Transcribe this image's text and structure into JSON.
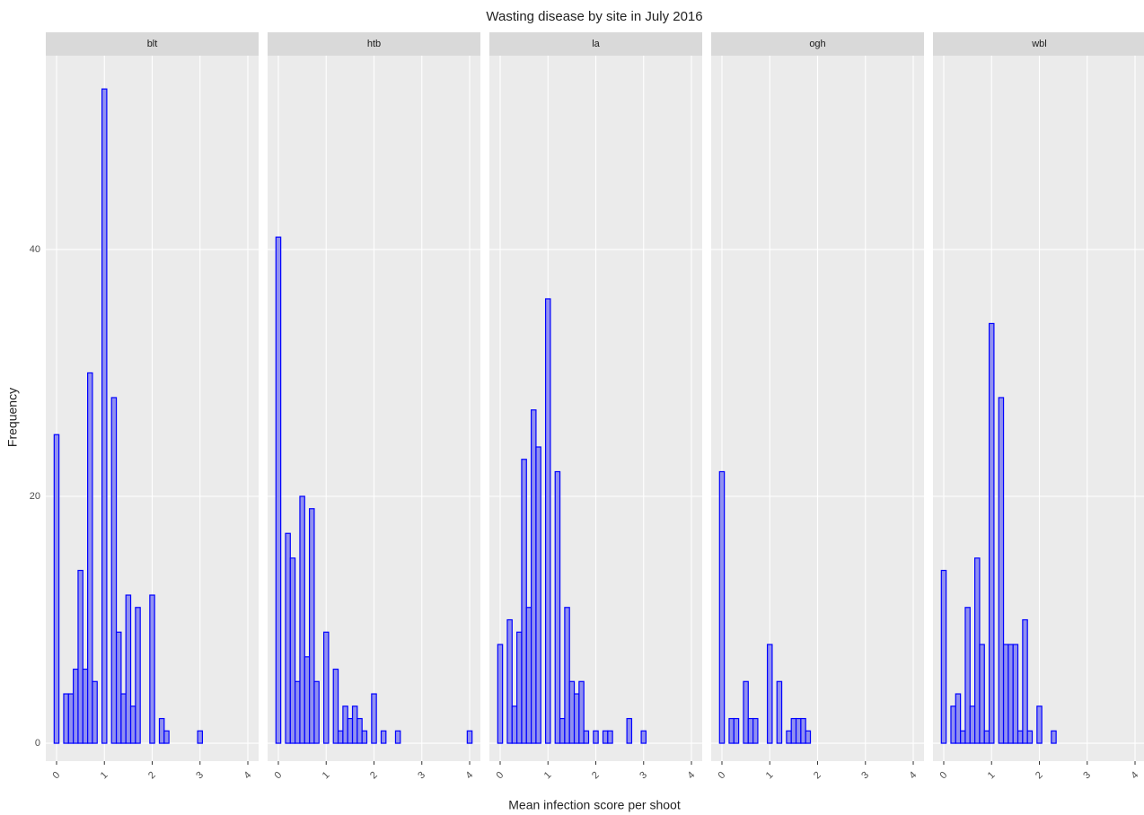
{
  "title": "Wasting disease by site in July 2016",
  "x_label": "Mean infection score per shoot",
  "y_label": "Frequency",
  "chart_data": [
    {
      "type": "histogram",
      "title": "blt",
      "color": "#0000ff",
      "fill": "#8080f0",
      "bins": [
        -0.05,
        0.05,
        0.15,
        0.25,
        0.35,
        0.45,
        0.55,
        0.65,
        0.75,
        0.85,
        0.95,
        1.05,
        1.15,
        1.25,
        1.35,
        1.45,
        1.55,
        1.65,
        1.75,
        1.85,
        1.95,
        2.05,
        2.15,
        2.25,
        2.35,
        2.45,
        2.55,
        2.65,
        2.75,
        2.85,
        2.95,
        3.05,
        3.15,
        3.25,
        3.35,
        3.45,
        3.55,
        3.65,
        3.75,
        3.85,
        3.95,
        4.05
      ],
      "values": [
        25,
        0,
        4,
        4,
        6,
        14,
        6,
        30,
        5,
        0,
        53,
        0,
        28,
        9,
        4,
        12,
        3,
        11,
        0,
        0,
        12,
        0,
        2,
        1,
        0,
        0,
        0,
        0,
        0,
        0,
        1,
        0,
        0,
        0,
        0,
        0,
        0,
        0,
        0,
        0,
        0
      ],
      "xlim": [
        -0.225,
        4.225
      ],
      "ylim": [
        -1.45,
        55.7
      ],
      "xticks": [
        0,
        1,
        2,
        3,
        4
      ],
      "yticks": [
        0,
        20,
        40
      ],
      "grid": true
    },
    {
      "type": "histogram",
      "title": "htb",
      "color": "#0000ff",
      "fill": "#8080f0",
      "bins": [
        -0.05,
        0.05,
        0.15,
        0.25,
        0.35,
        0.45,
        0.55,
        0.65,
        0.75,
        0.85,
        0.95,
        1.05,
        1.15,
        1.25,
        1.35,
        1.45,
        1.55,
        1.65,
        1.75,
        1.85,
        1.95,
        2.05,
        2.15,
        2.25,
        2.35,
        2.45,
        2.55,
        2.65,
        2.75,
        2.85,
        2.95,
        3.05,
        3.15,
        3.25,
        3.35,
        3.45,
        3.55,
        3.65,
        3.75,
        3.85,
        3.95,
        4.05
      ],
      "values": [
        41,
        0,
        17,
        15,
        5,
        20,
        7,
        19,
        5,
        0,
        9,
        0,
        6,
        1,
        3,
        2,
        3,
        2,
        1,
        0,
        4,
        0,
        1,
        0,
        0,
        1,
        0,
        0,
        0,
        0,
        0,
        0,
        0,
        0,
        0,
        0,
        0,
        0,
        0,
        0,
        1
      ],
      "xlim": [
        -0.225,
        4.225
      ],
      "ylim": [
        -1.45,
        55.7
      ],
      "xticks": [
        0,
        1,
        2,
        3,
        4
      ],
      "yticks": [
        0,
        20,
        40
      ],
      "grid": true
    },
    {
      "type": "histogram",
      "title": "la",
      "color": "#0000ff",
      "fill": "#8080f0",
      "bins": [
        -0.05,
        0.05,
        0.15,
        0.25,
        0.35,
        0.45,
        0.55,
        0.65,
        0.75,
        0.85,
        0.95,
        1.05,
        1.15,
        1.25,
        1.35,
        1.45,
        1.55,
        1.65,
        1.75,
        1.85,
        1.95,
        2.05,
        2.15,
        2.25,
        2.35,
        2.45,
        2.55,
        2.65,
        2.75,
        2.85,
        2.95,
        3.05,
        3.15,
        3.25,
        3.35,
        3.45,
        3.55,
        3.65,
        3.75,
        3.85,
        3.95,
        4.05
      ],
      "values": [
        8,
        0,
        10,
        3,
        9,
        23,
        11,
        27,
        24,
        0,
        36,
        0,
        22,
        2,
        11,
        5,
        4,
        5,
        1,
        0,
        1,
        0,
        1,
        1,
        0,
        0,
        0,
        2,
        0,
        0,
        1,
        0,
        0,
        0,
        0,
        0,
        0,
        0,
        0,
        0,
        0
      ],
      "xlim": [
        -0.225,
        4.225
      ],
      "ylim": [
        -1.45,
        55.7
      ],
      "xticks": [
        0,
        1,
        2,
        3,
        4
      ],
      "yticks": [
        0,
        20,
        40
      ],
      "grid": true
    },
    {
      "type": "histogram",
      "title": "ogh",
      "color": "#0000ff",
      "fill": "#8080f0",
      "bins": [
        -0.05,
        0.05,
        0.15,
        0.25,
        0.35,
        0.45,
        0.55,
        0.65,
        0.75,
        0.85,
        0.95,
        1.05,
        1.15,
        1.25,
        1.35,
        1.45,
        1.55,
        1.65,
        1.75,
        1.85,
        1.95,
        2.05,
        2.15,
        2.25,
        2.35,
        2.45,
        2.55,
        2.65,
        2.75,
        2.85,
        2.95,
        3.05,
        3.15,
        3.25,
        3.35,
        3.45,
        3.55,
        3.65,
        3.75,
        3.85,
        3.95,
        4.05
      ],
      "values": [
        22,
        0,
        2,
        2,
        0,
        5,
        2,
        2,
        0,
        0,
        8,
        0,
        5,
        0,
        1,
        2,
        2,
        2,
        1,
        0,
        0,
        0,
        0,
        0,
        0,
        0,
        0,
        0,
        0,
        0,
        0,
        0,
        0,
        0,
        0,
        0,
        0,
        0,
        0,
        0,
        0
      ],
      "xlim": [
        -0.225,
        4.225
      ],
      "ylim": [
        -1.45,
        55.7
      ],
      "xticks": [
        0,
        1,
        2,
        3,
        4
      ],
      "yticks": [
        0,
        20,
        40
      ],
      "grid": true
    },
    {
      "type": "histogram",
      "title": "wbl",
      "color": "#0000ff",
      "fill": "#8080f0",
      "bins": [
        -0.05,
        0.05,
        0.15,
        0.25,
        0.35,
        0.45,
        0.55,
        0.65,
        0.75,
        0.85,
        0.95,
        1.05,
        1.15,
        1.25,
        1.35,
        1.45,
        1.55,
        1.65,
        1.75,
        1.85,
        1.95,
        2.05,
        2.15,
        2.25,
        2.35,
        2.45,
        2.55,
        2.65,
        2.75,
        2.85,
        2.95,
        3.05,
        3.15,
        3.25,
        3.35,
        3.45,
        3.55,
        3.65,
        3.75,
        3.85,
        3.95,
        4.05
      ],
      "values": [
        14,
        0,
        3,
        4,
        1,
        11,
        3,
        15,
        8,
        1,
        34,
        0,
        28,
        8,
        8,
        8,
        1,
        10,
        1,
        0,
        3,
        0,
        0,
        1,
        0,
        0,
        0,
        0,
        0,
        0,
        0,
        0,
        0,
        0,
        0,
        0,
        0,
        0,
        0,
        0,
        0
      ],
      "xlim": [
        -0.225,
        4.225
      ],
      "ylim": [
        -1.45,
        55.7
      ],
      "xticks": [
        0,
        1,
        2,
        3,
        4
      ],
      "yticks": [
        0,
        20,
        40
      ],
      "grid": true
    }
  ]
}
